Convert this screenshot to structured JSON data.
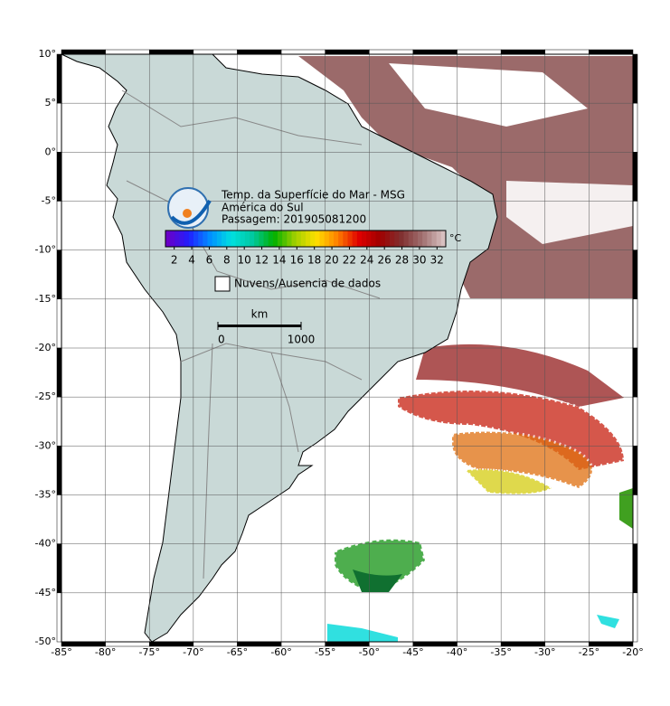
{
  "title_lines": [
    "Temp. da Superfície do Mar - MSG",
    "América do Sul",
    "Passagem: 201905081200"
  ],
  "colorbar": {
    "range": [
      1,
      33
    ],
    "ticks": [
      2,
      4,
      6,
      8,
      10,
      12,
      14,
      16,
      18,
      20,
      22,
      24,
      26,
      28,
      30,
      32
    ],
    "unit": "°C"
  },
  "legend": {
    "label": "Nuvens/Ausencia de dados"
  },
  "scale_bar": {
    "unit": "km",
    "ticks": [
      0,
      1000
    ]
  },
  "map": {
    "lon_range": [
      -85,
      -20
    ],
    "lat_range": [
      -50,
      10
    ],
    "lon_ticks": [
      {
        "value": -85,
        "label": "-85°"
      },
      {
        "value": -80,
        "label": "-80°"
      },
      {
        "value": -75,
        "label": "-75°"
      },
      {
        "value": -70,
        "label": "-70°"
      },
      {
        "value": -65,
        "label": "-65°"
      },
      {
        "value": -60,
        "label": "-60°"
      },
      {
        "value": -55,
        "label": "-55°"
      },
      {
        "value": -50,
        "label": "-50°"
      },
      {
        "value": -45,
        "label": "-45°"
      },
      {
        "value": -40,
        "label": "-40°"
      },
      {
        "value": -35,
        "label": "-35°"
      },
      {
        "value": -30,
        "label": "-30°"
      },
      {
        "value": -25,
        "label": "-25°"
      },
      {
        "value": -20,
        "label": "-20°"
      }
    ],
    "lat_ticks": [
      {
        "value": 10,
        "label": "10°"
      },
      {
        "value": 5,
        "label": "5°"
      },
      {
        "value": 0,
        "label": "0°"
      },
      {
        "value": -5,
        "label": "-5°"
      },
      {
        "value": -10,
        "label": "-10°"
      },
      {
        "value": -15,
        "label": "-15°"
      },
      {
        "value": -20,
        "label": "-20°"
      },
      {
        "value": -25,
        "label": "-25°"
      },
      {
        "value": -30,
        "label": "-30°"
      },
      {
        "value": -35,
        "label": "-35°"
      },
      {
        "value": -40,
        "label": "-40°"
      },
      {
        "value": -45,
        "label": "-45°"
      },
      {
        "value": -50,
        "label": "-50°"
      }
    ]
  }
}
